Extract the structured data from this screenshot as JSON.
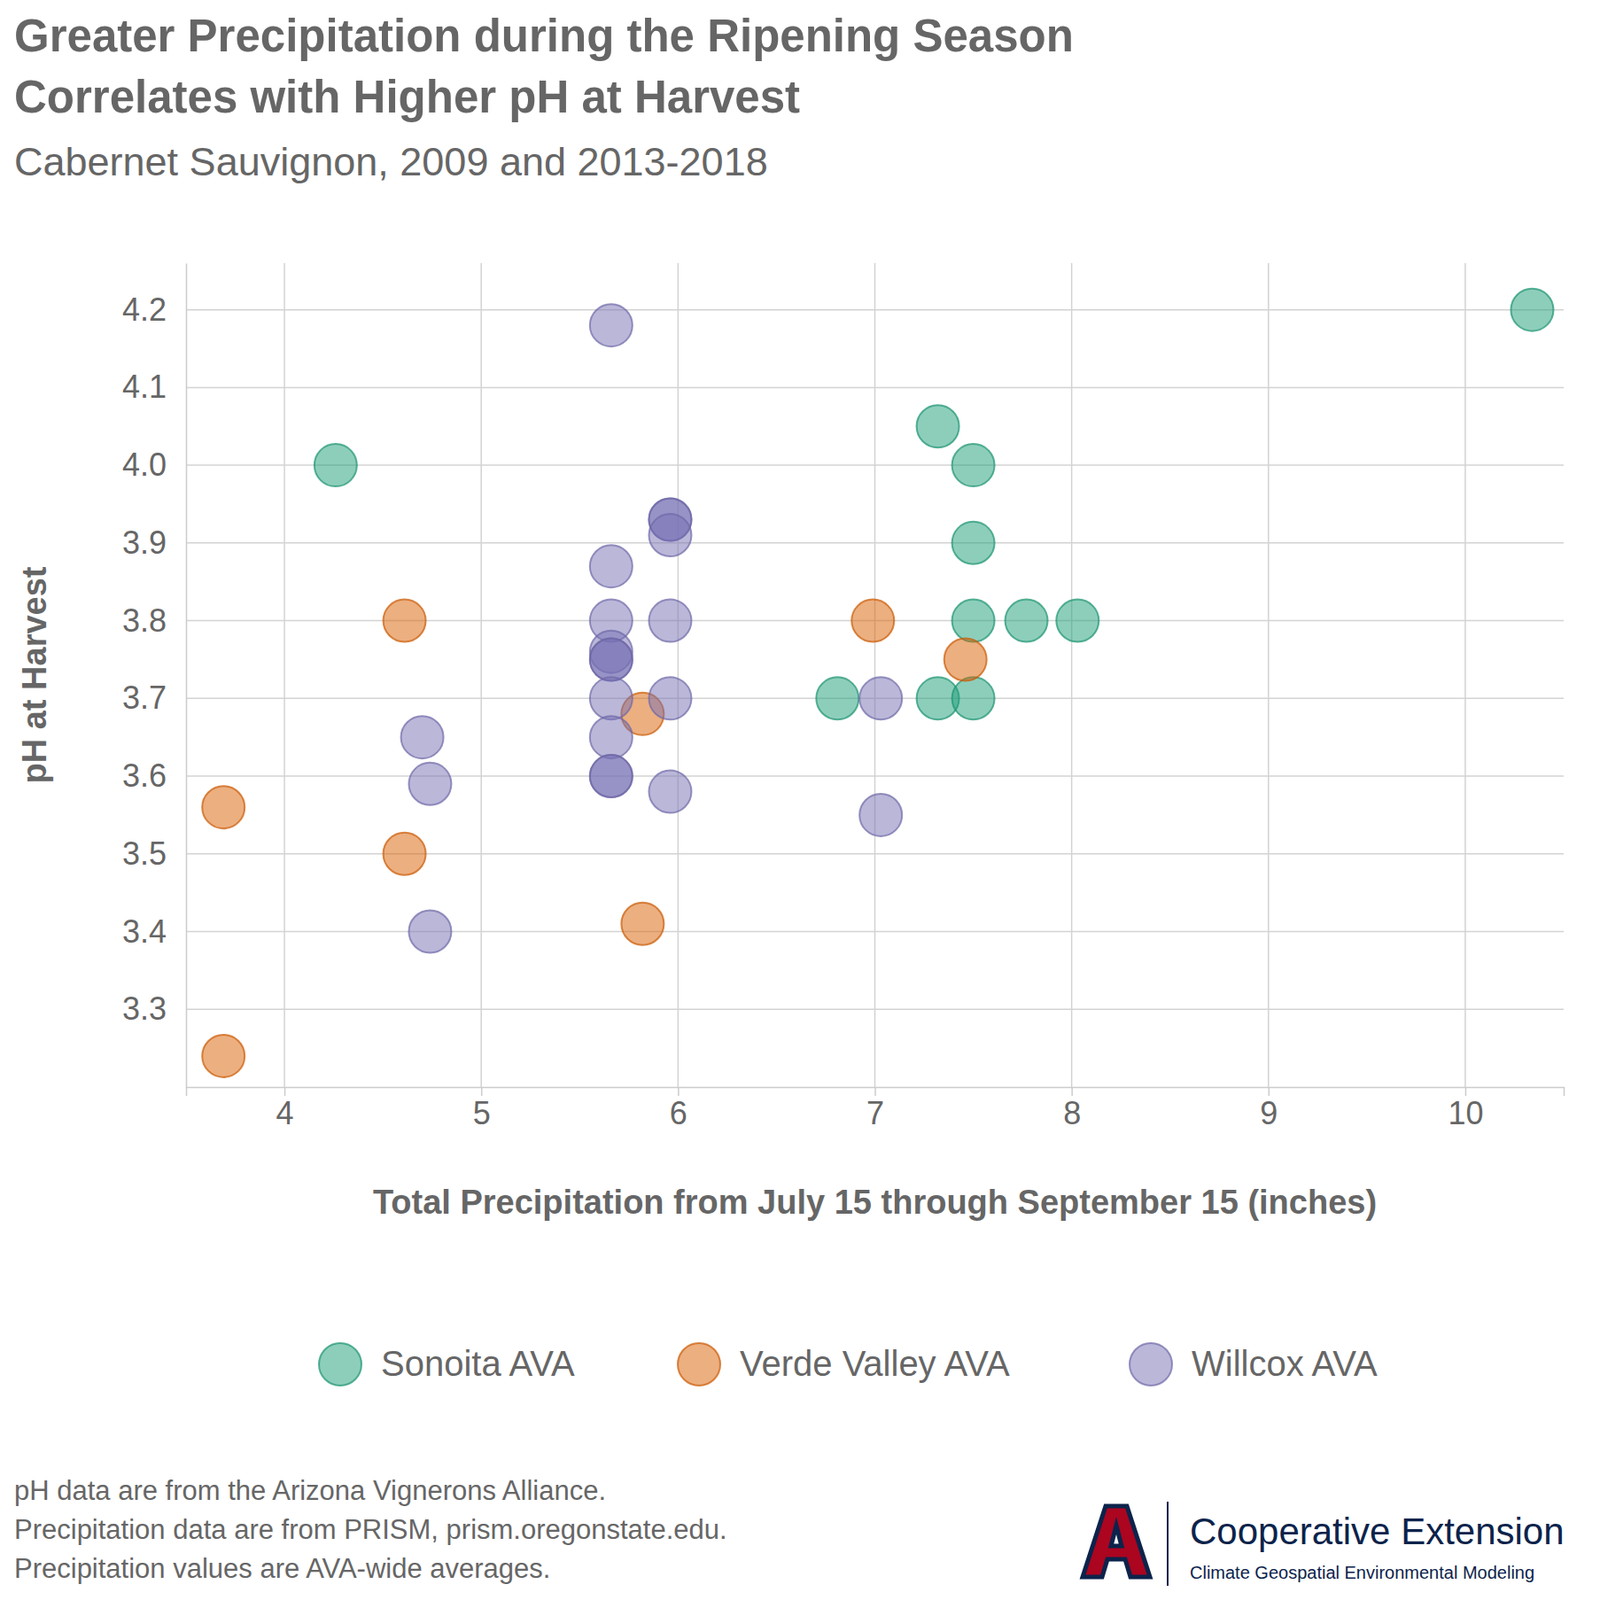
{
  "chart_data": {
    "type": "scatter",
    "title": [
      "Greater Precipitation during the Ripening Season",
      "Correlates with Higher pH at Harvest"
    ],
    "subtitle": "Cabernet Sauvignon, 2009 and 2013-2018",
    "x_label": "Total Precipitation from July 15 through September 15 (inches)",
    "y_label": "pH at Harvest",
    "xlim": [
      3.5,
      10.5
    ],
    "ylim": [
      3.2,
      4.26
    ],
    "xticks": [
      4,
      5,
      6,
      7,
      8,
      9,
      10
    ],
    "yticks": [
      {
        "value": 3.3,
        "label": "3.3"
      },
      {
        "value": 3.4,
        "label": "3.4"
      },
      {
        "value": 3.5,
        "label": "3.5"
      },
      {
        "value": 3.6,
        "label": "3.6"
      },
      {
        "value": 3.7,
        "label": "3.7"
      },
      {
        "value": 3.8,
        "label": "3.8"
      },
      {
        "value": 3.9,
        "label": "3.9"
      },
      {
        "value": 4.0,
        "label": "4.0"
      },
      {
        "value": 4.1,
        "label": "4.1"
      },
      {
        "value": 4.2,
        "label": "4.2"
      }
    ],
    "grid": true,
    "legend": "bottom",
    "marker": "circle",
    "series": [
      {
        "name": "Sonoita AVA",
        "color": "#1b9e77",
        "x": [
          4.26,
          7.32,
          7.5,
          7.5,
          7.5,
          7.77,
          8.03,
          6.81,
          7.32,
          7.5,
          10.34
        ],
        "values": [
          4.0,
          4.05,
          4.0,
          3.9,
          3.8,
          3.8,
          3.8,
          3.7,
          3.7,
          3.7,
          4.2
        ]
      },
      {
        "name": "Verde Valley AVA",
        "color": "#d95f02",
        "x": [
          3.69,
          3.69,
          4.61,
          4.61,
          5.82,
          5.82,
          6.99,
          7.46
        ],
        "values": [
          3.56,
          3.24,
          3.8,
          3.5,
          3.68,
          3.41,
          3.8,
          3.75
        ]
      },
      {
        "name": "Willcox AVA",
        "color": "#7570b3",
        "x": [
          5.66,
          5.66,
          5.66,
          5.66,
          5.66,
          5.66,
          5.66,
          5.66,
          5.66,
          5.66,
          5.96,
          5.96,
          5.96,
          5.96,
          5.96,
          5.96,
          4.7,
          4.74,
          4.74,
          7.03,
          7.03
        ],
        "values": [
          4.18,
          3.87,
          3.8,
          3.76,
          3.75,
          3.75,
          3.7,
          3.65,
          3.6,
          3.6,
          3.93,
          3.93,
          3.91,
          3.8,
          3.7,
          3.58,
          3.65,
          3.59,
          3.4,
          3.7,
          3.55
        ]
      }
    ],
    "notes": [
      "pH data are from the Arizona Vignerons Alliance.",
      "Precipitation data are from PRISM, prism.oregonstate.edu.",
      "Precipitation values are AVA-wide averages."
    ],
    "logo_text": [
      "Cooperative Extension",
      "Climate Geospatial Environmental Modeling"
    ]
  }
}
